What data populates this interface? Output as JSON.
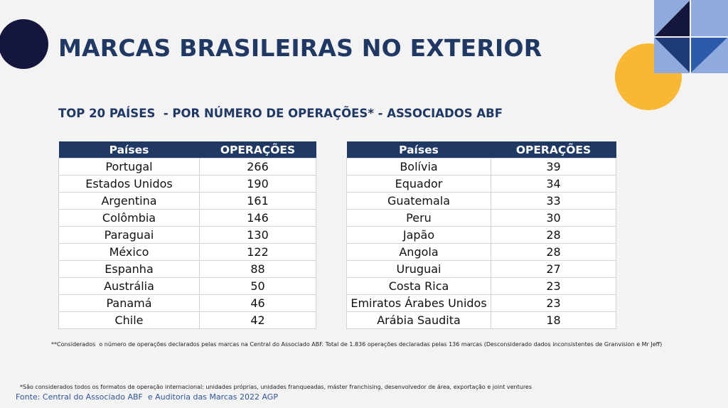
{
  "title": "MARCAS BRASILEIRAS NO EXTERIOR",
  "subtitle": "TOP 20 PAÍSES  - POR NÚMERO DE OPERAÇÕES* - ASSOCIADOS ABF",
  "tables": [
    {
      "header": [
        "Países",
        "OPERAÇÕES"
      ],
      "rows": [
        [
          "Portugal",
          266
        ],
        [
          "Estados Unidos",
          190
        ],
        [
          "Argentina",
          161
        ],
        [
          "Colômbia",
          146
        ],
        [
          "Paraguai",
          130
        ],
        [
          "México",
          122
        ],
        [
          "Espanha",
          88
        ],
        [
          "Austrália",
          50
        ],
        [
          "Panamá",
          46
        ],
        [
          "Chile",
          42
        ]
      ]
    },
    {
      "header": [
        "Países",
        "OPERAÇÕES"
      ],
      "rows": [
        [
          "Bolívia",
          39
        ],
        [
          "Equador",
          34
        ],
        [
          "Guatemala",
          33
        ],
        [
          "Peru",
          30
        ],
        [
          "Japão",
          28
        ],
        [
          "Angola",
          28
        ],
        [
          "Uruguai",
          27
        ],
        [
          "Costa Rica",
          23
        ],
        [
          "Emiratos Árabes Unidos",
          23
        ],
        [
          "Arábia Saudita",
          18
        ]
      ]
    }
  ],
  "note_total": "**Considerados  o número de operações declarados pelas marcas na Central do Associado ABF. Total de 1.836 operações declaradas pelas 136 marcas (Desconsiderado dados inconsistentes de Granvision e Mr Jeff)",
  "note_formats": "*São considerados todos os formatos de operação internacional: unidades próprias, unidades franqueadas, máster franchising, desenvolvedor de área, exportação e joint ventures",
  "source": "Fonte: Central do Associado ABF  e Auditoria das Marcas 2022 AGP"
}
